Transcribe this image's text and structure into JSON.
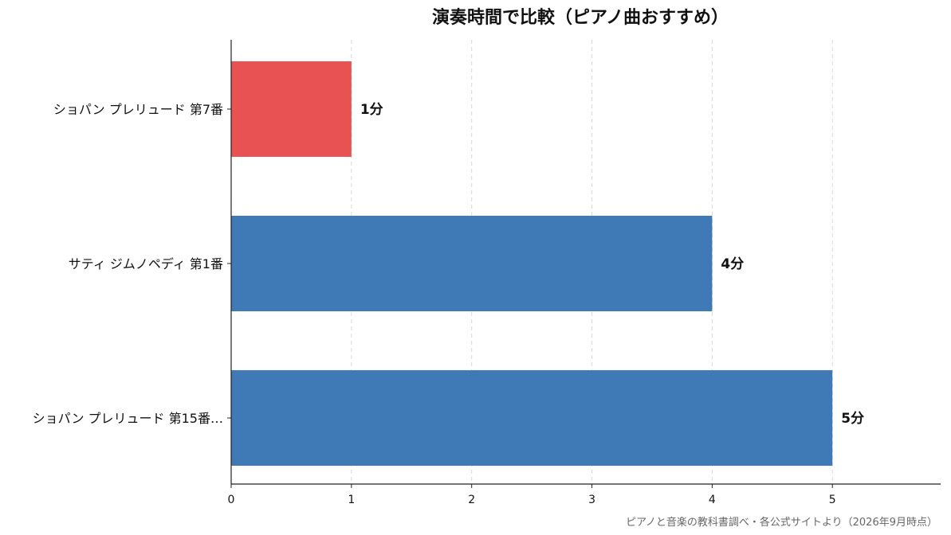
{
  "chart_data": {
    "type": "bar",
    "orientation": "horizontal",
    "title": "演奏時間で比較（ピアノ曲おすすめ）",
    "categories": [
      "ショパン プレリュード 第7番",
      "サティ ジムノペディ 第1番",
      "ショパン プレリュード 第15番…"
    ],
    "values": [
      1,
      4,
      5
    ],
    "value_labels": [
      "1分",
      "4分",
      "5分"
    ],
    "bar_colors": [
      "#e85252",
      "#3f7ab6",
      "#3f7ab6"
    ],
    "xlim": [
      0,
      5.9
    ],
    "xticks": [
      0,
      1,
      2,
      3,
      4,
      5
    ],
    "xlabel": "",
    "ylabel": "",
    "grid": "vertical dashed",
    "source": "ピアノと音楽の教科書調べ・各公式サイトより（2026年9月時点）"
  }
}
